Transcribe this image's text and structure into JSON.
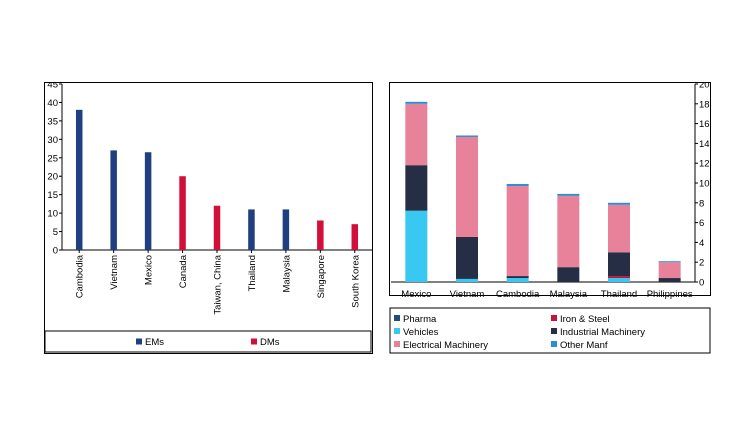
{
  "colors": {
    "ems": "#1f3f80",
    "dms": "#d0103a",
    "pharma": "#1f4e79",
    "iron_steel": "#c5143c",
    "vehicles": "#39c8f2",
    "industrial_machinery": "#252e44",
    "electrical_machinery": "#e8829a",
    "other_manf": "#2a8fd2",
    "axis": "#000000",
    "frame": "#000000"
  },
  "chart_data": [
    {
      "type": "bar",
      "title": "",
      "xlabel": "",
      "ylabel": "",
      "ylim": [
        0,
        45
      ],
      "yticks": [
        0,
        5,
        10,
        15,
        20,
        25,
        30,
        35,
        40,
        45
      ],
      "grid": false,
      "legend_position": "bottom",
      "categories": [
        "Cambodia",
        "Vietnam",
        "Mexico",
        "Canada",
        "Taiwan, China",
        "Thailand",
        "Malaysia",
        "Singapore",
        "South Korea"
      ],
      "values": [
        38,
        27,
        26.5,
        20,
        12,
        11,
        11,
        8,
        7
      ],
      "groups": [
        "EMs",
        "EMs",
        "EMs",
        "DMs",
        "DMs",
        "EMs",
        "EMs",
        "DMs",
        "DMs"
      ],
      "series": [
        {
          "name": "EMs",
          "color": "#1f3f80"
        },
        {
          "name": "DMs",
          "color": "#d0103a"
        }
      ]
    },
    {
      "type": "bar",
      "stacked": true,
      "title": "",
      "xlabel": "",
      "ylabel": "",
      "ylim": [
        0,
        20
      ],
      "yticks": [
        0,
        2,
        4,
        6,
        8,
        10,
        12,
        14,
        16,
        18,
        20
      ],
      "y_axis_side": "right",
      "grid": false,
      "legend_position": "bottom",
      "categories": [
        "Mexico",
        "Vietnam",
        "Cambodia",
        "Malaysia",
        "Thailand",
        "Philippines"
      ],
      "series": [
        {
          "name": "Pharma",
          "color": "#1f4e79",
          "values": [
            0,
            0.05,
            0,
            0,
            0,
            0
          ]
        },
        {
          "name": "Iron & Steel",
          "color": "#c5143c",
          "values": [
            0,
            0,
            0,
            0,
            0.2,
            0
          ]
        },
        {
          "name": "Vehicles",
          "color": "#39c8f2",
          "values": [
            7.2,
            0.3,
            0.4,
            0,
            0.4,
            0
          ]
        },
        {
          "name": "Industrial Machinery",
          "color": "#252e44",
          "values": [
            4.6,
            4.2,
            0.2,
            1.5,
            2.4,
            0.4
          ]
        },
        {
          "name": "Electrical Machinery",
          "color": "#e8829a",
          "values": [
            6.2,
            10.1,
            9.1,
            7.2,
            4.8,
            1.6
          ]
        },
        {
          "name": "Other Manf",
          "color": "#2a8fd2",
          "values": [
            0.2,
            0.15,
            0.2,
            0.2,
            0.2,
            0.1
          ]
        }
      ]
    }
  ]
}
